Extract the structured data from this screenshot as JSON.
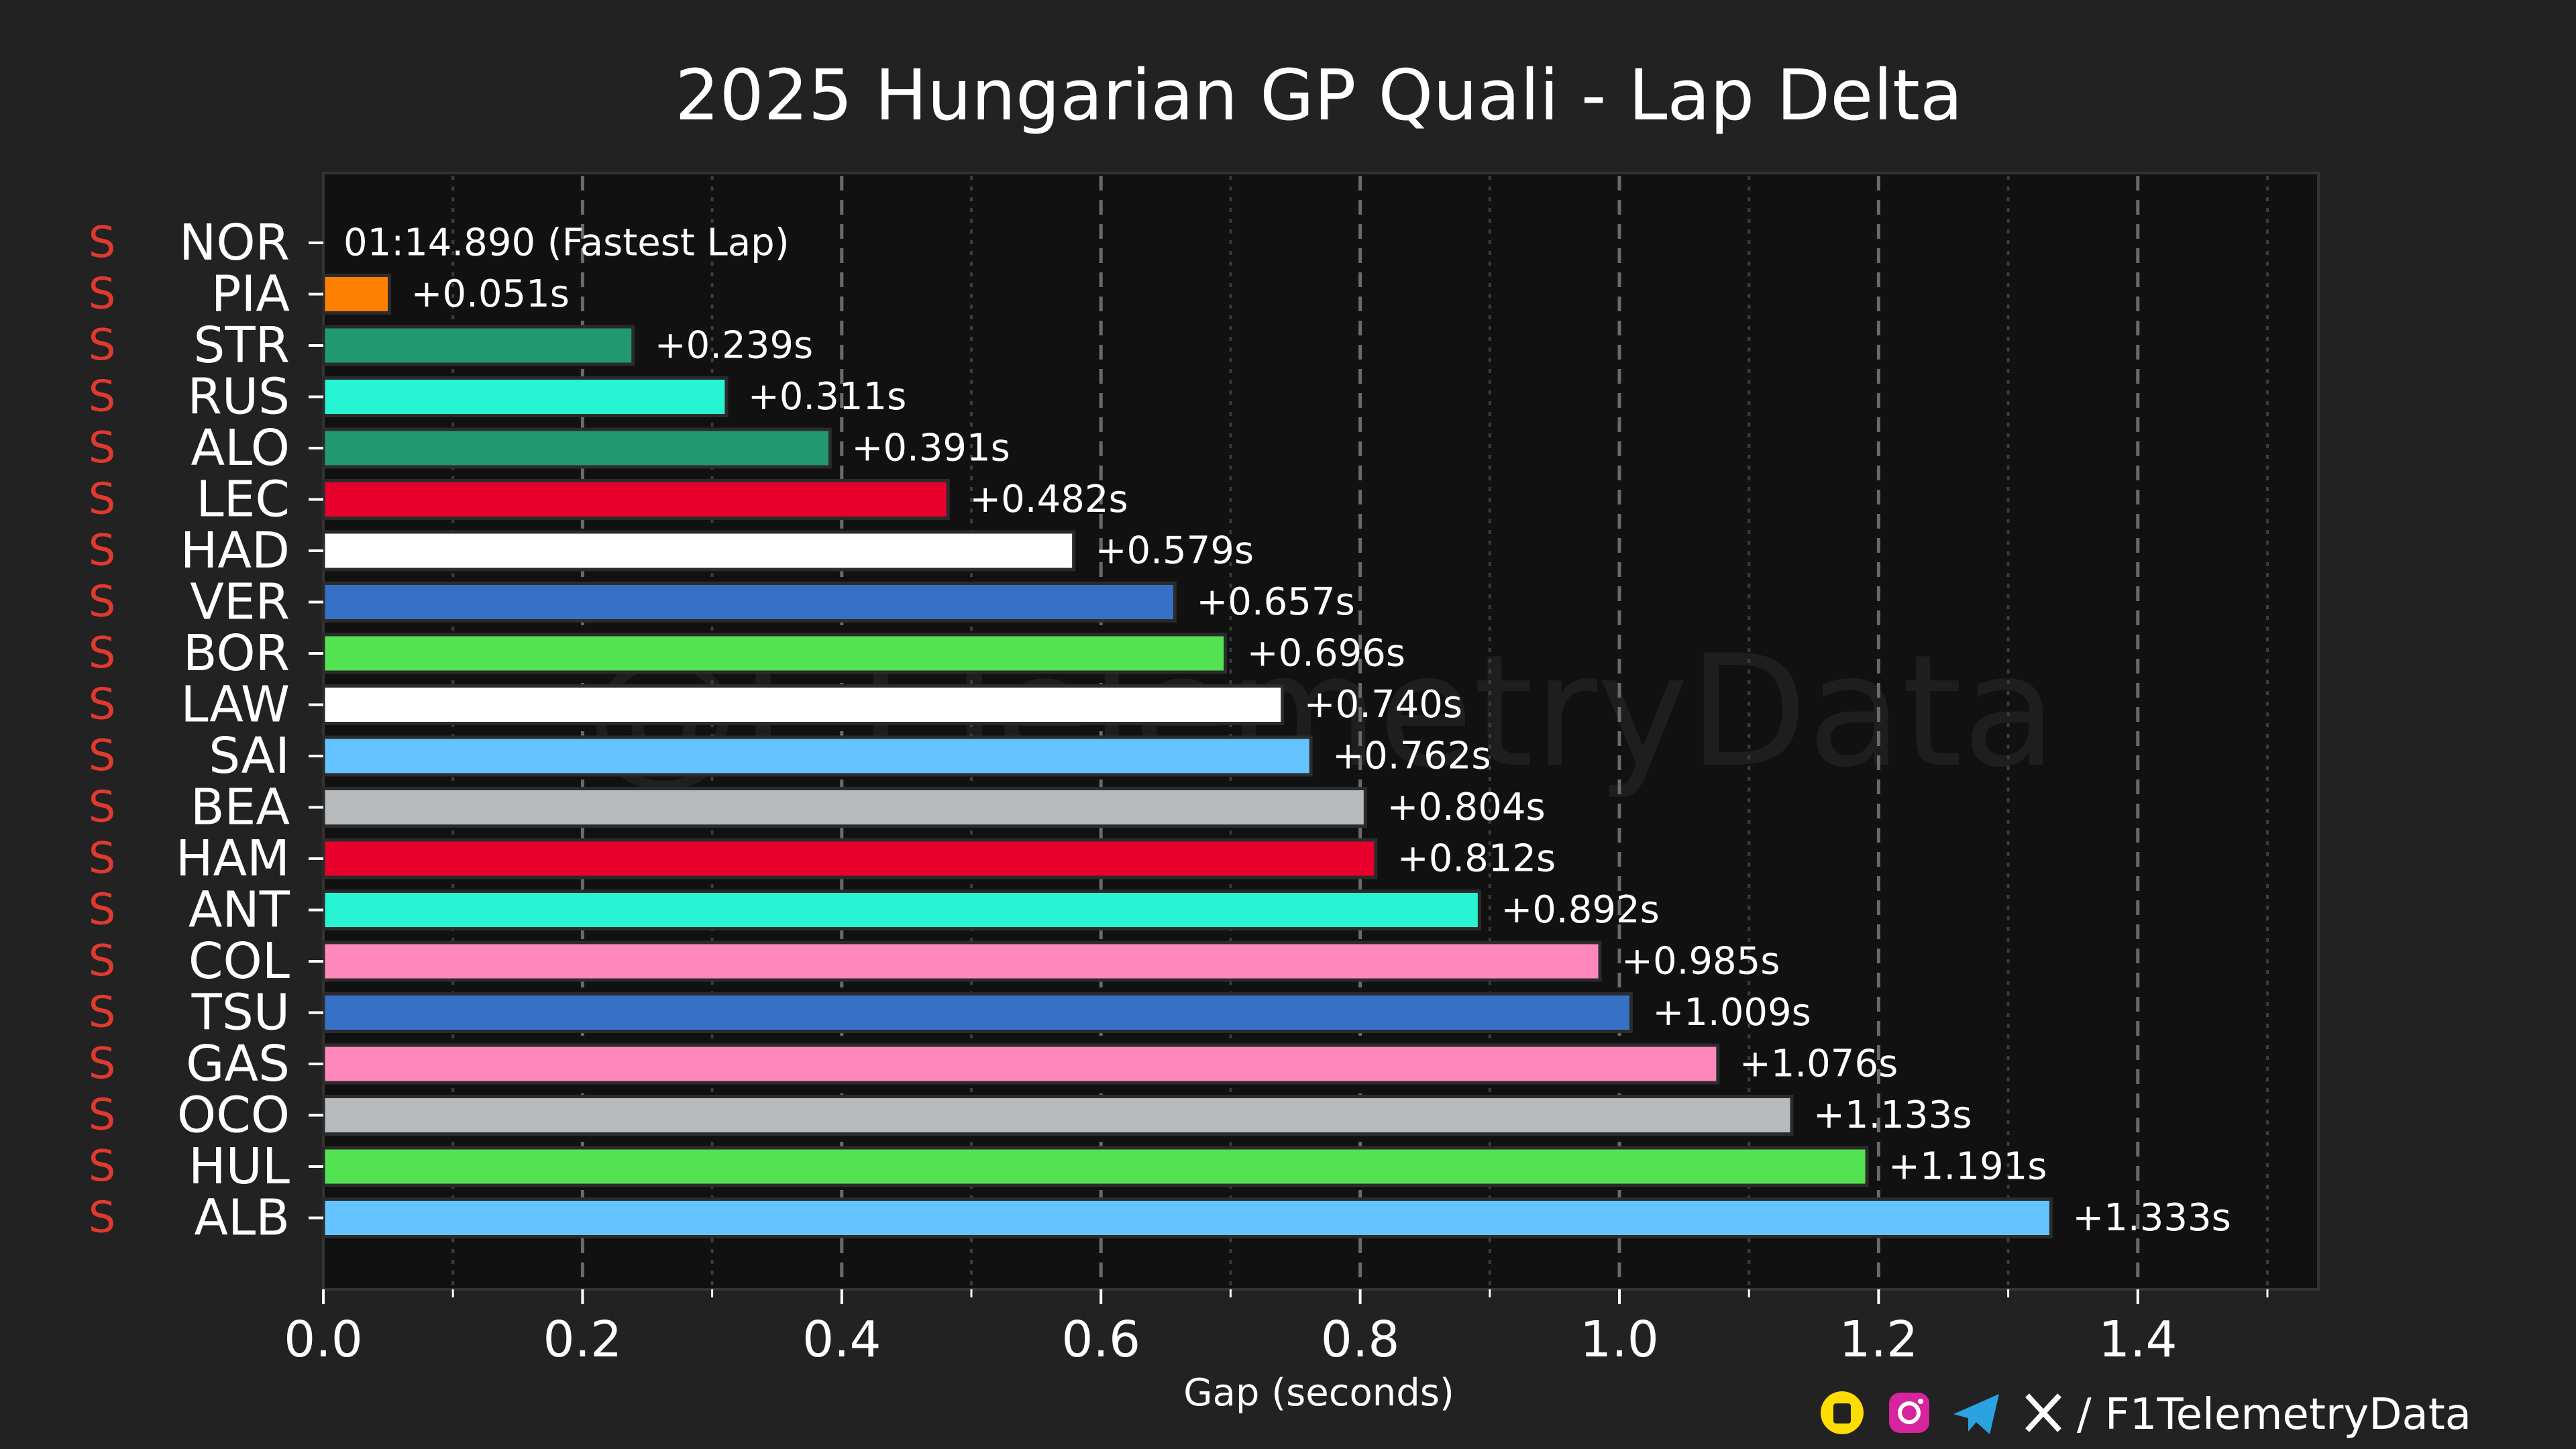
{
  "chart_data": {
    "type": "bar",
    "orientation": "horizontal",
    "title": "2025 Hungarian GP Quali - Lap Delta",
    "xlabel": "Gap (seconds)",
    "ylabel": "",
    "xlim": [
      0.0,
      1.54
    ],
    "xticks": [
      0.0,
      0.2,
      0.4,
      0.6,
      0.8,
      1.0,
      1.2,
      1.4
    ],
    "xtick_labels": [
      "0.0",
      "0.2",
      "0.4",
      "0.6",
      "0.8",
      "1.0",
      "1.2",
      "1.4"
    ],
    "grid": "vertical dashed major, dotted minor",
    "fastest_label": "01:14.890 (Fastest Lap)",
    "categories": [
      "NOR",
      "PIA",
      "STR",
      "RUS",
      "ALO",
      "LEC",
      "HAD",
      "VER",
      "BOR",
      "LAW",
      "SAI",
      "BEA",
      "HAM",
      "ANT",
      "COL",
      "TSU",
      "GAS",
      "OCO",
      "HUL",
      "ALB"
    ],
    "tyres": [
      "S",
      "S",
      "S",
      "S",
      "S",
      "S",
      "S",
      "S",
      "S",
      "S",
      "S",
      "S",
      "S",
      "S",
      "S",
      "S",
      "S",
      "S",
      "S",
      "S"
    ],
    "values": [
      0.0,
      0.051,
      0.239,
      0.311,
      0.391,
      0.482,
      0.579,
      0.657,
      0.696,
      0.74,
      0.762,
      0.804,
      0.812,
      0.892,
      0.985,
      1.009,
      1.076,
      1.133,
      1.191,
      1.333
    ],
    "value_labels": [
      "",
      "+0.051s",
      "+0.239s",
      "+0.311s",
      "+0.391s",
      "+0.482s",
      "+0.579s",
      "+0.657s",
      "+0.696s",
      "+0.740s",
      "+0.762s",
      "+0.804s",
      "+0.812s",
      "+0.892s",
      "+0.985s",
      "+1.009s",
      "+1.076s",
      "+1.133s",
      "+1.191s",
      "+1.333s"
    ],
    "colors": [
      "#ff8000",
      "#ff8000",
      "#229971",
      "#27f4d2",
      "#229971",
      "#e8002d",
      "#ffffff",
      "#3671c6",
      "#52e252",
      "#ffffff",
      "#64c4ff",
      "#b6babd",
      "#e8002d",
      "#27f4d2",
      "#ff87bc",
      "#3671c6",
      "#ff87bc",
      "#b6babd",
      "#52e252",
      "#64c4ff"
    ]
  },
  "watermark": "@F1TelemetryData",
  "footer": {
    "handle": "/ F1TelemetryData"
  },
  "colors": {
    "background": "#222222",
    "plot_background": "#111111",
    "tyre_soft": "#e03a2f"
  }
}
